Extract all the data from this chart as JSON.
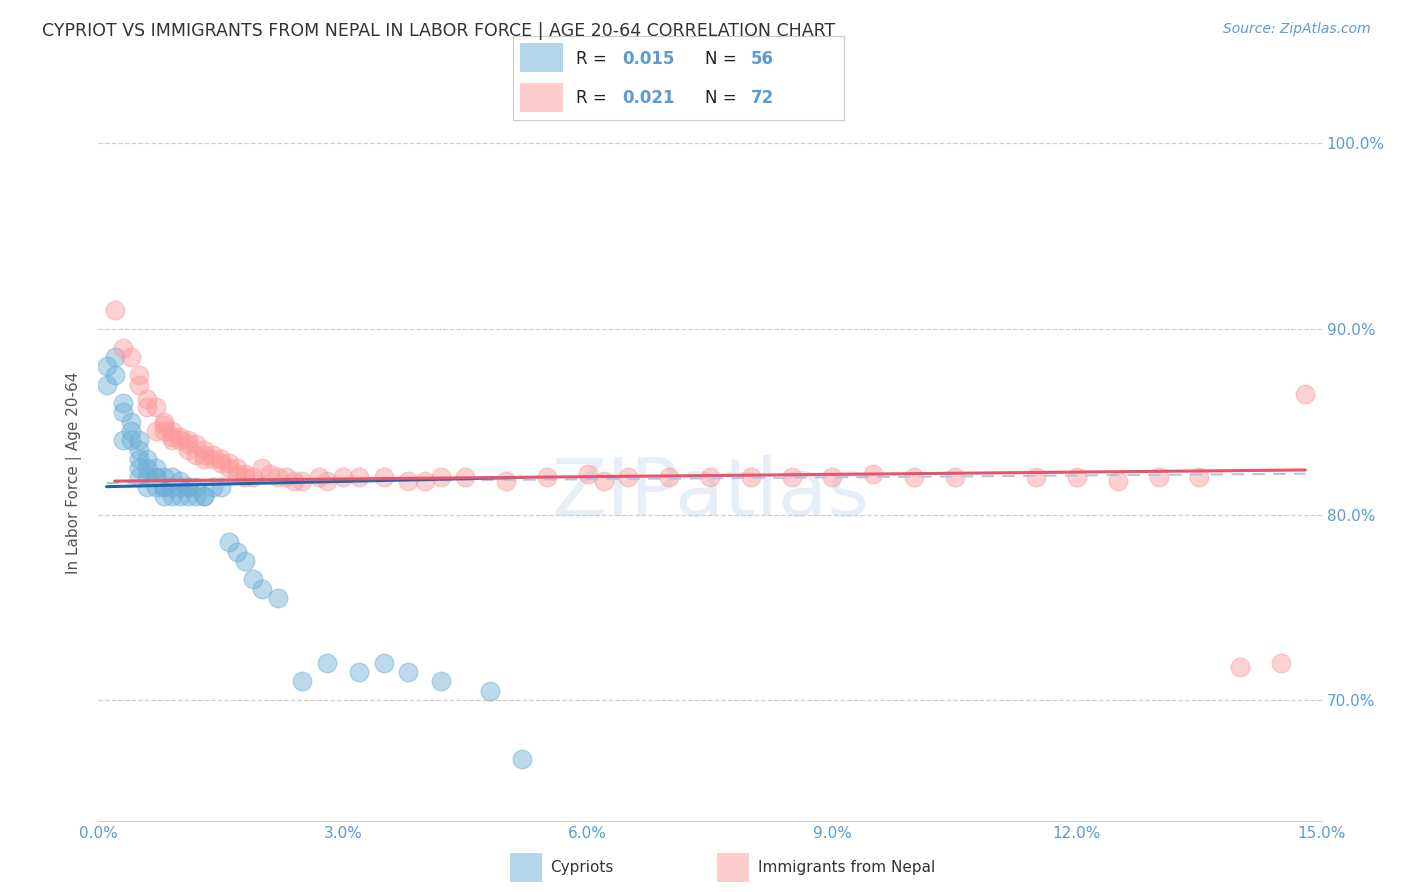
{
  "title": "CYPRIOT VS IMMIGRANTS FROM NEPAL IN LABOR FORCE | AGE 20-64 CORRELATION CHART",
  "source": "Source: ZipAtlas.com",
  "ylabel": "In Labor Force | Age 20-64",
  "xlim": [
    0.0,
    0.15
  ],
  "ylim": [
    0.635,
    1.01
  ],
  "xticks": [
    0.0,
    0.03,
    0.06,
    0.09,
    0.12,
    0.15
  ],
  "xticklabels": [
    "0.0%",
    "3.0%",
    "6.0%",
    "9.0%",
    "12.0%",
    "15.0%"
  ],
  "yticks": [
    0.7,
    0.8,
    0.9,
    1.0
  ],
  "yticklabels": [
    "70.0%",
    "80.0%",
    "90.0%",
    "100.0%"
  ],
  "cypriot_color": "#6baed6",
  "nepal_color": "#fb9a99",
  "trend_color_cypriot": "#2166ac",
  "trend_color_nepal": "#e8546a",
  "trend_color_dashed": "#aec7e8",
  "watermark": "ZIPatlas",
  "watermark_color": "#aec7e8",
  "title_color": "#333333",
  "axis_label_color": "#555555",
  "tick_color": "#5b9bd5",
  "grid_color": "#d0d0d0",
  "background_color": "#ffffff",
  "cypriot_x": [
    0.001,
    0.001,
    0.002,
    0.002,
    0.003,
    0.003,
    0.003,
    0.004,
    0.004,
    0.004,
    0.005,
    0.005,
    0.005,
    0.005,
    0.005,
    0.006,
    0.006,
    0.006,
    0.006,
    0.007,
    0.007,
    0.007,
    0.007,
    0.008,
    0.008,
    0.008,
    0.008,
    0.009,
    0.009,
    0.009,
    0.01,
    0.01,
    0.01,
    0.011,
    0.011,
    0.011,
    0.012,
    0.012,
    0.013,
    0.013,
    0.014,
    0.015,
    0.016,
    0.017,
    0.018,
    0.019,
    0.02,
    0.022,
    0.025,
    0.028,
    0.032,
    0.035,
    0.038,
    0.042,
    0.048,
    0.052
  ],
  "cypriot_y": [
    0.88,
    0.87,
    0.885,
    0.875,
    0.86,
    0.855,
    0.84,
    0.85,
    0.845,
    0.84,
    0.84,
    0.835,
    0.83,
    0.825,
    0.82,
    0.83,
    0.825,
    0.82,
    0.815,
    0.825,
    0.82,
    0.82,
    0.815,
    0.82,
    0.815,
    0.815,
    0.81,
    0.82,
    0.815,
    0.81,
    0.818,
    0.815,
    0.81,
    0.815,
    0.815,
    0.81,
    0.815,
    0.81,
    0.81,
    0.81,
    0.815,
    0.815,
    0.785,
    0.78,
    0.775,
    0.765,
    0.76,
    0.755,
    0.71,
    0.72,
    0.715,
    0.72,
    0.715,
    0.71,
    0.705,
    0.668
  ],
  "nepal_x": [
    0.002,
    0.003,
    0.004,
    0.005,
    0.005,
    0.006,
    0.006,
    0.007,
    0.007,
    0.008,
    0.008,
    0.008,
    0.009,
    0.009,
    0.009,
    0.01,
    0.01,
    0.011,
    0.011,
    0.011,
    0.012,
    0.012,
    0.013,
    0.013,
    0.013,
    0.014,
    0.014,
    0.015,
    0.015,
    0.016,
    0.016,
    0.017,
    0.017,
    0.018,
    0.018,
    0.019,
    0.02,
    0.021,
    0.022,
    0.023,
    0.024,
    0.025,
    0.027,
    0.028,
    0.03,
    0.032,
    0.035,
    0.038,
    0.04,
    0.042,
    0.045,
    0.05,
    0.055,
    0.06,
    0.062,
    0.065,
    0.07,
    0.075,
    0.08,
    0.085,
    0.09,
    0.095,
    0.1,
    0.105,
    0.115,
    0.12,
    0.125,
    0.13,
    0.135,
    0.14,
    0.145,
    0.148
  ],
  "nepal_y": [
    0.91,
    0.89,
    0.885,
    0.875,
    0.87,
    0.862,
    0.858,
    0.858,
    0.845,
    0.848,
    0.85,
    0.845,
    0.845,
    0.842,
    0.84,
    0.842,
    0.84,
    0.84,
    0.838,
    0.835,
    0.838,
    0.832,
    0.835,
    0.832,
    0.83,
    0.832,
    0.83,
    0.83,
    0.828,
    0.828,
    0.825,
    0.825,
    0.822,
    0.822,
    0.82,
    0.82,
    0.825,
    0.822,
    0.82,
    0.82,
    0.818,
    0.818,
    0.82,
    0.818,
    0.82,
    0.82,
    0.82,
    0.818,
    0.818,
    0.82,
    0.82,
    0.818,
    0.82,
    0.822,
    0.818,
    0.82,
    0.82,
    0.82,
    0.82,
    0.82,
    0.82,
    0.822,
    0.82,
    0.82,
    0.82,
    0.82,
    0.818,
    0.82,
    0.82,
    0.718,
    0.72,
    0.865
  ],
  "cyp_trend_x": [
    0.001,
    0.052
  ],
  "cyp_trend_y": [
    0.815,
    0.82
  ],
  "nep_trend_x": [
    0.002,
    0.148
  ],
  "nep_trend_y": [
    0.818,
    0.824
  ],
  "dash_trend_x": [
    0.001,
    0.148
  ],
  "dash_trend_y": [
    0.817,
    0.822
  ]
}
